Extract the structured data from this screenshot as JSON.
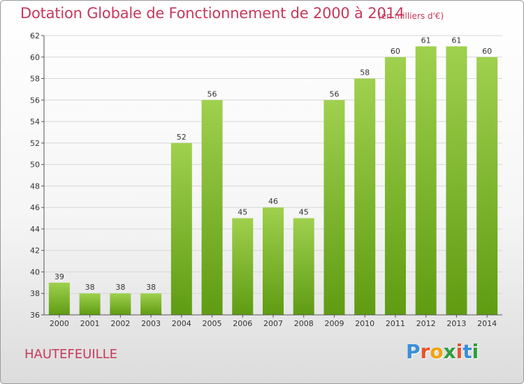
{
  "header": {
    "title": "Dotation Globale de Fonctionnement de 2000 à 2014",
    "unit": "(en milliers d'€)"
  },
  "footer": {
    "commune": "HAUTEFEUILLE",
    "logo_letters": [
      "P",
      "r",
      "o",
      "x",
      "i",
      "t",
      "i"
    ],
    "logo_colors": [
      "#3a8fd8",
      "#e8532b",
      "#f2a20c",
      "#2e9e3e",
      "#e8532b",
      "#3a8fd8",
      "#2e9e3e"
    ]
  },
  "colors": {
    "bar_top": "#9fd04e",
    "bar_bottom": "#5f9c12",
    "grid": "#d6d6d6",
    "axis": "#555555",
    "text": "#333333",
    "accent": "#c8385c"
  },
  "chart_data": {
    "type": "bar",
    "categories": [
      "2000",
      "2001",
      "2002",
      "2003",
      "2004",
      "2005",
      "2006",
      "2007",
      "2008",
      "2009",
      "2010",
      "2011",
      "2012",
      "2013",
      "2014"
    ],
    "values": [
      39,
      38,
      38,
      38,
      52,
      56,
      45,
      46,
      45,
      56,
      58,
      60,
      61,
      61,
      60
    ],
    "title": "Dotation Globale de Fonctionnement de 2000 à 2014",
    "subtitle": "(en milliers d'€)",
    "xlabel": "",
    "ylabel": "",
    "ylim": [
      36,
      62
    ],
    "yticks": [
      36,
      38,
      40,
      42,
      44,
      46,
      48,
      50,
      52,
      54,
      56,
      58,
      60,
      62
    ],
    "grid": true,
    "legend": "none"
  }
}
